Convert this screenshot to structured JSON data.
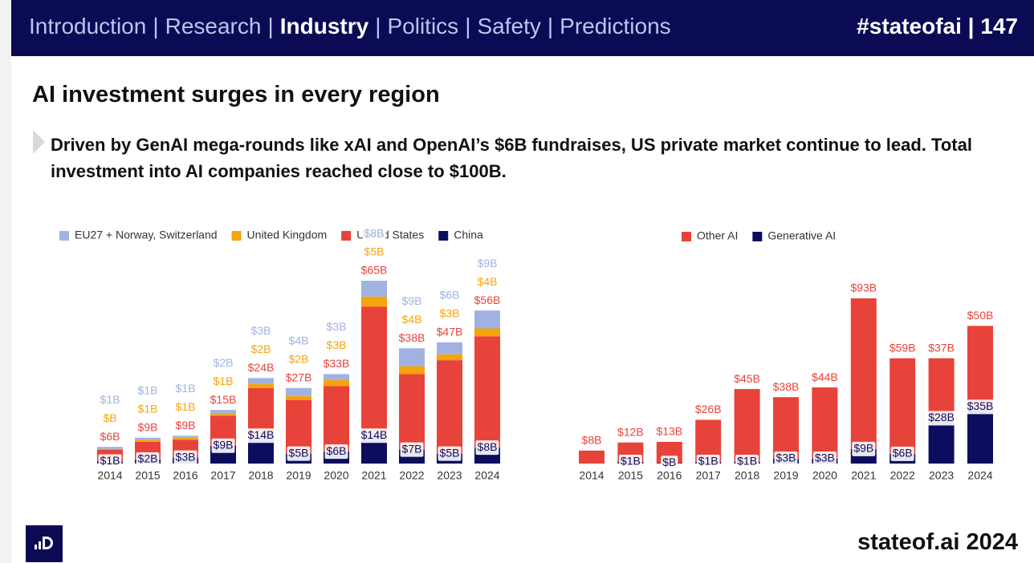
{
  "header": {
    "nav": [
      "Introduction",
      "Research",
      "Industry",
      "Politics",
      "Safety",
      "Predictions"
    ],
    "active": 2,
    "separator": "|",
    "tag": "#stateofai | 147"
  },
  "title": "AI investment surges in every region",
  "subtitle": "Driven by GenAI mega-rounds like xAI and OpenAI’s $6B fundraises, US private market continue to lead. Total investment into AI companies reached close to $100B.",
  "footer": "stateof.ai 2024",
  "chart_data": [
    {
      "type": "bar",
      "stacked": true,
      "categories": [
        "2014",
        "2015",
        "2016",
        "2017",
        "2018",
        "2019",
        "2020",
        "2021",
        "2022",
        "2023",
        "2024"
      ],
      "series": [
        {
          "name": "China",
          "color": "#0d0d5e",
          "values": [
            1,
            2,
            3,
            9,
            14,
            5,
            6,
            14,
            7,
            5,
            8
          ],
          "value_labels": [
            "$1B",
            "$2B",
            "$3B",
            "$9B",
            "$14B",
            "$5B",
            "$6B",
            "$14B",
            "$7B",
            "$5B",
            "$8B"
          ]
        },
        {
          "name": "United States",
          "color": "#e8433a",
          "values": [
            6,
            9,
            9,
            15,
            24,
            27,
            33,
            65,
            38,
            47,
            56
          ],
          "value_labels": [
            "$6B",
            "$9B",
            "$9B",
            "$15B",
            "$24B",
            "$27B",
            "$33B",
            "$65B",
            "$38B",
            "$47B",
            "$56B"
          ]
        },
        {
          "name": "United Kingdom",
          "color": "#f5a40c",
          "values": [
            0.4,
            1,
            1,
            1,
            2,
            2,
            3,
            5,
            4,
            3,
            4
          ],
          "value_labels": [
            "$B",
            "$1B",
            "$1B",
            "$1B",
            "$2B",
            "$2B",
            "$3B",
            "$5B",
            "$4B",
            "$3B",
            "$4B"
          ]
        },
        {
          "name": "EU27 + Norway, Switzerland",
          "color": "#9fb2e2",
          "values": [
            1,
            1,
            1,
            2,
            3,
            4,
            3,
            8,
            9,
            6,
            9
          ],
          "value_labels": [
            "$1B",
            "$1B",
            "$1B",
            "$2B",
            "$3B",
            "$4B",
            "$3B",
            "$8B",
            "$9B",
            "$6B",
            "$9B"
          ]
        }
      ]
    },
    {
      "type": "bar",
      "stacked": true,
      "categories": [
        "2014",
        "2015",
        "2016",
        "2017",
        "2018",
        "2019",
        "2020",
        "2021",
        "2022",
        "2023",
        "2024"
      ],
      "series": [
        {
          "name": "Generative AI",
          "color": "#0d0d5e",
          "values": [
            0,
            1,
            0.4,
            1,
            1,
            3,
            3,
            9,
            6,
            28,
            35
          ],
          "value_labels": [
            null,
            "$1B",
            "$B",
            "$1B",
            "$1B",
            "$3B",
            "$3B",
            "$9B",
            "$6B",
            "$28B",
            "$35B"
          ]
        },
        {
          "name": "Other AI",
          "color": "#e8433a",
          "values": [
            8,
            12,
            13,
            26,
            45,
            38,
            44,
            93,
            59,
            37,
            50
          ],
          "value_labels": [
            "$8B",
            "$12B",
            "$13B",
            "$26B",
            "$45B",
            "$38B",
            "$44B",
            "$93B",
            "$59B",
            "$37B",
            "$50B"
          ]
        }
      ]
    }
  ]
}
